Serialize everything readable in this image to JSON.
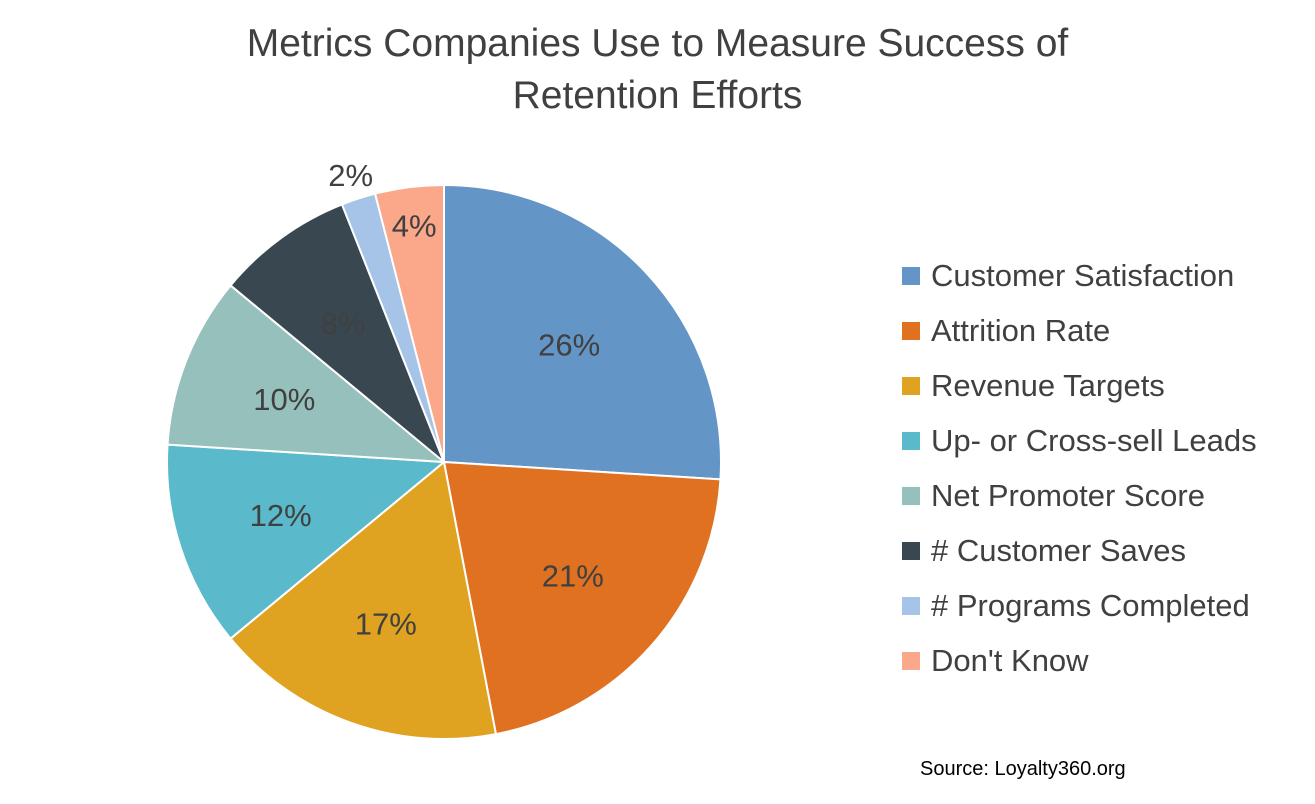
{
  "chart_data": {
    "type": "pie",
    "title_lines": [
      "Metrics Companies Use to Measure Success of",
      "Retention Efforts"
    ],
    "slices": [
      {
        "label": "Customer Satisfaction",
        "value": 26,
        "display": "26%",
        "color": "#6495c7"
      },
      {
        "label": "Attrition Rate",
        "value": 21,
        "display": "21%",
        "color": "#e07121"
      },
      {
        "label": "Revenue Targets",
        "value": 17,
        "display": "17%",
        "color": "#e0a321"
      },
      {
        "label": "Up- or Cross-sell Leads",
        "value": 12,
        "display": "12%",
        "color": "#5abacb"
      },
      {
        "label": "Net Promoter Score",
        "value": 10,
        "display": "10%",
        "color": "#96c0bb"
      },
      {
        "label": "# Customer Saves",
        "value": 8,
        "display": "8%",
        "color": "#394751"
      },
      {
        "label": "# Programs Completed",
        "value": 2,
        "display": "2%",
        "color": "#a6c4e8"
      },
      {
        "label": "Don't Know",
        "value": 4,
        "display": "4%",
        "color": "#fba88a"
      }
    ],
    "legend_position": "right",
    "source": "Source: Loyalty360.org"
  }
}
